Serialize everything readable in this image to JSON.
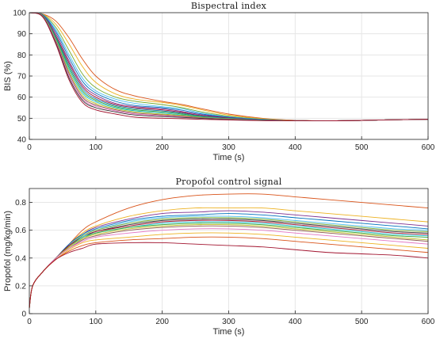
{
  "chart_data": [
    {
      "type": "line",
      "title": "Bispectral index",
      "xlabel": "Time (s)",
      "ylabel": "BIS (%)",
      "xlim": [
        0,
        600
      ],
      "ylim": [
        40,
        100
      ],
      "xticks": [
        0,
        100,
        200,
        300,
        400,
        500,
        600
      ],
      "yticks": [
        40,
        50,
        60,
        70,
        80,
        90,
        100
      ],
      "grid": true,
      "x": [
        0,
        20,
        40,
        60,
        80,
        100,
        130,
        160,
        200,
        230,
        260,
        300,
        350,
        400,
        450,
        500,
        550,
        600
      ],
      "series": [
        {
          "color": "#d95319",
          "values": [
            100,
            99.4,
            96.0,
            88.0,
            78.0,
            70.0,
            63.5,
            60.5,
            58.0,
            56.5,
            54.5,
            52.0,
            50.0,
            49.0,
            48.8,
            49.0,
            49.3,
            49.5
          ]
        },
        {
          "color": "#edb120",
          "values": [
            100,
            99.3,
            94.5,
            85.0,
            74.5,
            67.0,
            61.5,
            59.0,
            57.5,
            56.0,
            54.0,
            51.5,
            49.8,
            49.0,
            48.8,
            49.0,
            49.3,
            49.5
          ]
        },
        {
          "color": "#77ac30",
          "values": [
            100,
            99.2,
            93.0,
            82.0,
            71.0,
            64.5,
            60.0,
            58.0,
            56.5,
            55.0,
            53.0,
            51.0,
            49.6,
            48.9,
            48.8,
            49.0,
            49.3,
            49.5
          ]
        },
        {
          "color": "#4dbeee",
          "values": [
            100,
            99.1,
            92.0,
            80.0,
            69.0,
            63.0,
            59.0,
            57.0,
            55.5,
            54.5,
            52.5,
            50.7,
            49.5,
            48.9,
            48.8,
            49.0,
            49.3,
            49.5
          ]
        },
        {
          "color": "#0072bd",
          "values": [
            100,
            99.0,
            91.0,
            78.5,
            67.5,
            62.0,
            58.0,
            56.0,
            55.0,
            53.8,
            52.0,
            50.5,
            49.4,
            48.9,
            48.8,
            49.0,
            49.3,
            49.5
          ]
        },
        {
          "color": "#7e2f8e",
          "values": [
            100,
            98.9,
            90.0,
            77.0,
            66.0,
            61.0,
            57.0,
            55.5,
            54.5,
            53.2,
            51.6,
            50.3,
            49.3,
            48.9,
            48.8,
            49.0,
            49.3,
            49.5
          ]
        },
        {
          "color": "#a2142f",
          "values": [
            100,
            98.8,
            89.0,
            76.0,
            65.0,
            60.0,
            56.5,
            55.0,
            54.0,
            52.8,
            51.2,
            50.1,
            49.2,
            48.9,
            48.8,
            49.0,
            49.3,
            49.5
          ]
        },
        {
          "color": "#1f77b4",
          "values": [
            100,
            98.7,
            88.5,
            75.0,
            64.0,
            59.2,
            56.0,
            54.5,
            53.5,
            52.4,
            51.0,
            50.0,
            49.2,
            48.9,
            48.8,
            49.0,
            49.3,
            49.5
          ]
        },
        {
          "color": "#2ca02c",
          "values": [
            100,
            98.6,
            88.0,
            74.0,
            63.0,
            58.5,
            55.5,
            54.0,
            53.0,
            52.0,
            50.8,
            49.9,
            49.1,
            48.9,
            48.8,
            49.0,
            49.3,
            49.5
          ]
        },
        {
          "color": "#17becf",
          "values": [
            100,
            98.5,
            87.5,
            73.0,
            62.0,
            57.8,
            55.0,
            53.5,
            52.5,
            51.6,
            50.6,
            49.8,
            49.1,
            48.9,
            48.8,
            49.0,
            49.3,
            49.5
          ]
        },
        {
          "color": "#bcbd22",
          "values": [
            100,
            98.4,
            87.0,
            72.0,
            61.0,
            57.0,
            54.5,
            53.0,
            52.0,
            51.3,
            50.4,
            49.7,
            49.0,
            48.9,
            48.8,
            49.0,
            49.3,
            49.5
          ]
        },
        {
          "color": "#8c564b",
          "values": [
            100,
            98.3,
            86.5,
            71.0,
            60.0,
            56.3,
            54.0,
            52.5,
            51.6,
            51.0,
            50.2,
            49.6,
            49.0,
            48.9,
            48.8,
            49.0,
            49.3,
            49.5
          ]
        },
        {
          "color": "#e377c2",
          "values": [
            100,
            98.2,
            86.0,
            70.0,
            59.2,
            55.7,
            53.5,
            52.0,
            51.2,
            50.7,
            50.0,
            49.5,
            49.0,
            48.9,
            48.8,
            49.0,
            49.3,
            49.5
          ]
        },
        {
          "color": "#333333",
          "values": [
            100,
            98.1,
            85.5,
            69.0,
            58.5,
            55.0,
            53.0,
            51.5,
            50.8,
            50.4,
            49.9,
            49.4,
            49.0,
            48.9,
            48.8,
            49.0,
            49.3,
            49.5
          ]
        },
        {
          "color": "#a2142f",
          "values": [
            100,
            98.0,
            85.0,
            68.0,
            57.5,
            54.0,
            52.0,
            50.5,
            50.0,
            49.8,
            49.5,
            49.2,
            48.9,
            48.9,
            48.8,
            49.0,
            49.3,
            49.5
          ]
        }
      ]
    },
    {
      "type": "line",
      "title": "Propofol control signal",
      "xlabel": "Time (s)",
      "ylabel": "Propofol (mg/kg/min)",
      "xlim": [
        0,
        600
      ],
      "ylim": [
        0,
        0.9
      ],
      "xticks": [
        0,
        100,
        200,
        300,
        400,
        500,
        600
      ],
      "yticks": [
        0,
        0.2,
        0.4,
        0.6,
        0.8
      ],
      "grid": true,
      "x": [
        0,
        5,
        20,
        40,
        60,
        80,
        100,
        150,
        200,
        250,
        300,
        350,
        400,
        450,
        500,
        550,
        600
      ],
      "series": [
        {
          "color": "#d95319",
          "values": [
            0.04,
            0.2,
            0.3,
            0.4,
            0.5,
            0.6,
            0.66,
            0.76,
            0.82,
            0.85,
            0.86,
            0.86,
            0.84,
            0.82,
            0.8,
            0.78,
            0.76
          ]
        },
        {
          "color": "#edb120",
          "values": [
            0.04,
            0.2,
            0.3,
            0.4,
            0.5,
            0.58,
            0.63,
            0.7,
            0.74,
            0.76,
            0.76,
            0.76,
            0.74,
            0.72,
            0.7,
            0.68,
            0.66
          ]
        },
        {
          "color": "#7e2f8e",
          "values": [
            0.04,
            0.2,
            0.3,
            0.4,
            0.5,
            0.57,
            0.62,
            0.68,
            0.72,
            0.73,
            0.74,
            0.73,
            0.71,
            0.69,
            0.67,
            0.65,
            0.63
          ]
        },
        {
          "color": "#0072bd",
          "values": [
            0.04,
            0.2,
            0.3,
            0.4,
            0.5,
            0.57,
            0.61,
            0.67,
            0.7,
            0.71,
            0.72,
            0.71,
            0.69,
            0.67,
            0.65,
            0.63,
            0.61
          ]
        },
        {
          "color": "#4dbeee",
          "values": [
            0.04,
            0.2,
            0.3,
            0.4,
            0.49,
            0.56,
            0.6,
            0.66,
            0.69,
            0.7,
            0.7,
            0.69,
            0.67,
            0.65,
            0.63,
            0.61,
            0.6
          ]
        },
        {
          "color": "#77ac30",
          "values": [
            0.04,
            0.2,
            0.3,
            0.4,
            0.49,
            0.56,
            0.6,
            0.65,
            0.68,
            0.69,
            0.69,
            0.68,
            0.66,
            0.64,
            0.62,
            0.6,
            0.59
          ]
        },
        {
          "color": "#333333",
          "values": [
            0.04,
            0.2,
            0.3,
            0.4,
            0.49,
            0.55,
            0.59,
            0.64,
            0.67,
            0.68,
            0.68,
            0.67,
            0.65,
            0.63,
            0.61,
            0.59,
            0.58
          ]
        },
        {
          "color": "#a2142f",
          "values": [
            0.04,
            0.2,
            0.3,
            0.4,
            0.49,
            0.55,
            0.59,
            0.63,
            0.66,
            0.67,
            0.67,
            0.66,
            0.64,
            0.62,
            0.6,
            0.58,
            0.57
          ]
        },
        {
          "color": "#17becf",
          "values": [
            0.04,
            0.2,
            0.3,
            0.4,
            0.48,
            0.55,
            0.58,
            0.62,
            0.65,
            0.66,
            0.66,
            0.65,
            0.63,
            0.61,
            0.59,
            0.57,
            0.56
          ]
        },
        {
          "color": "#2ca02c",
          "values": [
            0.04,
            0.2,
            0.3,
            0.4,
            0.48,
            0.54,
            0.58,
            0.62,
            0.64,
            0.65,
            0.65,
            0.64,
            0.62,
            0.6,
            0.58,
            0.56,
            0.55
          ]
        },
        {
          "color": "#bcbd22",
          "values": [
            0.04,
            0.2,
            0.3,
            0.4,
            0.48,
            0.54,
            0.57,
            0.61,
            0.63,
            0.64,
            0.64,
            0.63,
            0.61,
            0.59,
            0.57,
            0.55,
            0.53
          ]
        },
        {
          "color": "#8c564b",
          "values": [
            0.04,
            0.2,
            0.3,
            0.4,
            0.47,
            0.53,
            0.56,
            0.6,
            0.62,
            0.63,
            0.63,
            0.62,
            0.6,
            0.58,
            0.56,
            0.54,
            0.52
          ]
        },
        {
          "color": "#e377c2",
          "values": [
            0.04,
            0.2,
            0.3,
            0.4,
            0.47,
            0.52,
            0.55,
            0.58,
            0.6,
            0.61,
            0.61,
            0.6,
            0.58,
            0.56,
            0.54,
            0.52,
            0.5
          ]
        },
        {
          "color": "#edb120",
          "values": [
            0.04,
            0.2,
            0.3,
            0.39,
            0.46,
            0.51,
            0.53,
            0.55,
            0.57,
            0.58,
            0.58,
            0.57,
            0.55,
            0.53,
            0.51,
            0.49,
            0.47
          ]
        },
        {
          "color": "#d95319",
          "values": [
            0.04,
            0.2,
            0.3,
            0.39,
            0.45,
            0.49,
            0.51,
            0.53,
            0.54,
            0.55,
            0.55,
            0.54,
            0.52,
            0.5,
            0.48,
            0.46,
            0.44
          ]
        },
        {
          "color": "#a2142f",
          "values": [
            0.04,
            0.2,
            0.3,
            0.39,
            0.44,
            0.47,
            0.5,
            0.51,
            0.51,
            0.5,
            0.49,
            0.48,
            0.46,
            0.44,
            0.43,
            0.42,
            0.4
          ]
        }
      ]
    }
  ]
}
